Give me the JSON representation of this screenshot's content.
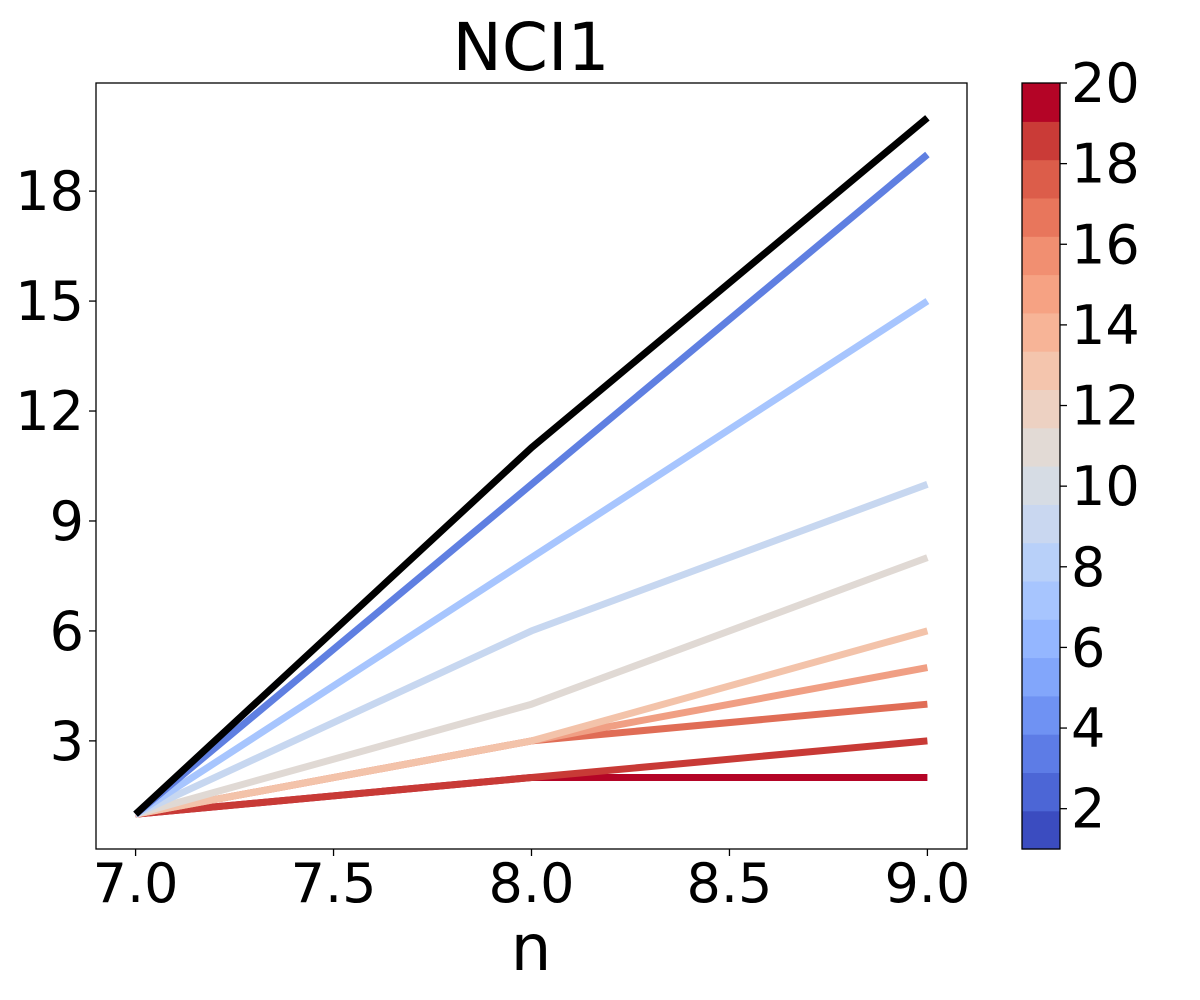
{
  "chart_data": {
    "type": "line",
    "title": "NCI1",
    "xlabel": "n",
    "ylabel": "",
    "xlim": [
      6.9,
      9.1
    ],
    "ylim": [
      0.05,
      20.95
    ],
    "xticks": [
      7.0,
      7.5,
      8.0,
      8.5,
      9.0
    ],
    "xtick_labels": [
      "7.0",
      "7.5",
      "8.0",
      "8.5",
      "9.0"
    ],
    "yticks": [
      3,
      6,
      9,
      12,
      15,
      18
    ],
    "ytick_labels": [
      "3",
      "6",
      "9",
      "12",
      "15",
      "18"
    ],
    "x": [
      7,
      8,
      9
    ],
    "grid": false,
    "legend": "none",
    "colorbar": {
      "vmin": 1,
      "vmax": 20,
      "ticks": [
        2,
        4,
        6,
        8,
        10,
        12,
        14,
        16,
        18,
        20
      ],
      "tick_labels": [
        "2",
        "4",
        "6",
        "8",
        "10",
        "12",
        "14",
        "16",
        "18",
        "20"
      ],
      "colors": [
        "#3b4cc0",
        "#4c66d6",
        "#5d7ce6",
        "#6f92f3",
        "#82a6fb",
        "#94b6ff",
        "#a7c5fe",
        "#b8d0f9",
        "#c9d7f0",
        "#d6dce4",
        "#e2dad5",
        "#edd1c2",
        "#f4c5ad",
        "#f7b497",
        "#f6a283",
        "#f18f71",
        "#e8765c",
        "#dc5d4a",
        "#ca3b37",
        "#b40426"
      ]
    },
    "series": [
      {
        "color": "#000000",
        "values": [
          1,
          11,
          20
        ]
      },
      {
        "color": "#5f7fe1",
        "values": [
          1,
          10,
          19
        ]
      },
      {
        "color": "#a7c5fe",
        "values": [
          1,
          8,
          15
        ]
      },
      {
        "color": "#c7d7f0",
        "values": [
          1,
          6,
          10
        ]
      },
      {
        "color": "#e0d9d4",
        "values": [
          1,
          4,
          8
        ]
      },
      {
        "color": "#f3c3aa",
        "values": [
          1,
          3,
          6
        ]
      },
      {
        "color": "#f09f84",
        "values": [
          1,
          3,
          5
        ]
      },
      {
        "color": "#e06d56",
        "values": [
          1,
          3,
          4
        ]
      },
      {
        "color": "#c83a36",
        "values": [
          1,
          2,
          3
        ]
      },
      {
        "color": "#b40426",
        "values": [
          1,
          2,
          2
        ]
      }
    ]
  }
}
